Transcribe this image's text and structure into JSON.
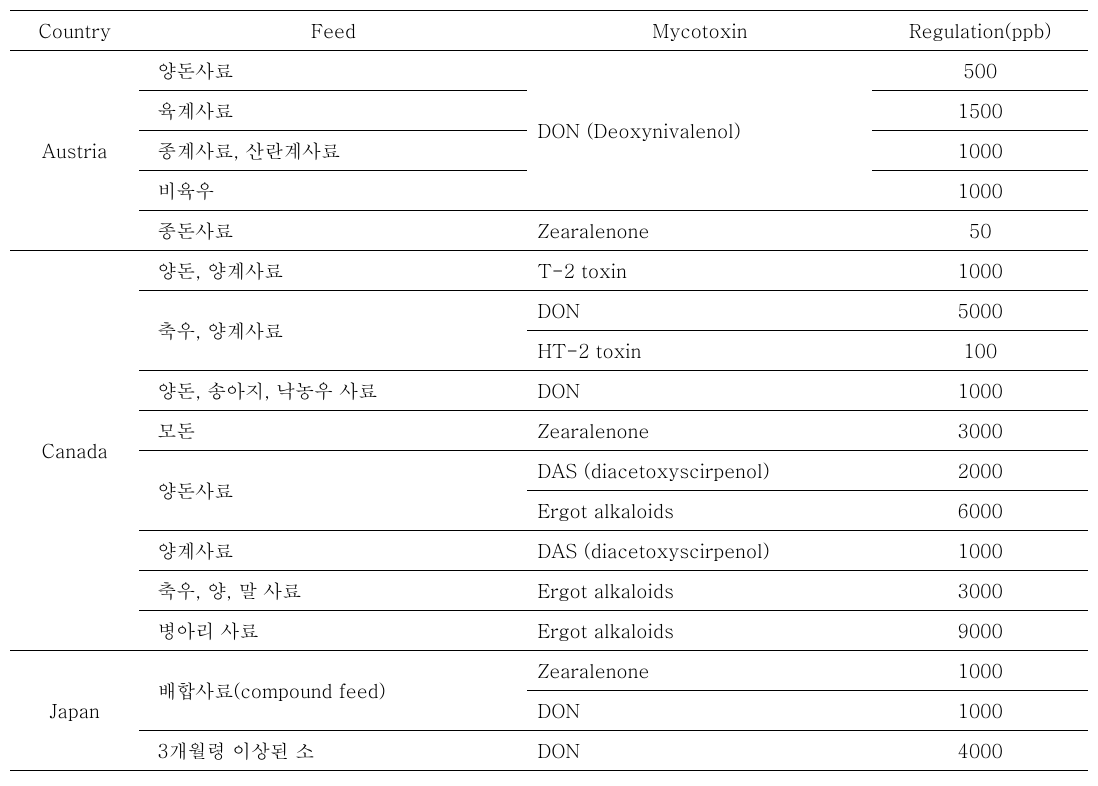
{
  "headers": {
    "country": "Country",
    "feed": "Feed",
    "mycotoxin": "Mycotoxin",
    "regulation": "Regulation(ppb)"
  },
  "rows": [
    {
      "country": "Austria",
      "feed": "양돈사료",
      "mycotoxin": "DON (Deoxynivalenol)",
      "regulation": "500",
      "country_rowspan": 5,
      "mycotoxin_rowspan": 4,
      "feed_border": "inner-bottom",
      "reg_border": "inner-bottom"
    },
    {
      "feed": "육계사료",
      "regulation": "1500",
      "feed_border": "inner-bottom",
      "reg_border": "inner-bottom"
    },
    {
      "feed": "종계사료, 산란계사료",
      "regulation": "1000",
      "feed_border": "inner-bottom",
      "reg_border": "inner-bottom"
    },
    {
      "feed": "비육우",
      "regulation": "1000",
      "feed_border": "inner-bottom",
      "myco_border": "inner-bottom",
      "reg_border": "inner-bottom"
    },
    {
      "feed": "종돈사료",
      "mycotoxin": "Zearalenone",
      "regulation": "50",
      "country_border": "section-bottom",
      "feed_border": "section-bottom",
      "myco_border": "section-bottom",
      "reg_border": "section-bottom"
    },
    {
      "country": "Canada",
      "feed": "양돈, 양계사료",
      "mycotoxin": "T-2 toxin",
      "regulation": "1000",
      "country_rowspan": 10,
      "feed_border": "inner-bottom",
      "myco_border": "inner-bottom",
      "reg_border": "inner-bottom"
    },
    {
      "feed": "축우, 양계사료",
      "feed_rowspan": 2,
      "mycotoxin": "DON",
      "regulation": "5000",
      "myco_border": "inner-bottom",
      "reg_border": "inner-bottom"
    },
    {
      "mycotoxin": "HT-2 toxin",
      "regulation": "100",
      "feed_border": "inner-bottom",
      "myco_border": "inner-bottom",
      "reg_border": "inner-bottom"
    },
    {
      "feed": "양돈, 송아지, 낙농우 사료",
      "mycotoxin": "DON",
      "regulation": "1000",
      "feed_border": "inner-bottom",
      "myco_border": "inner-bottom",
      "reg_border": "inner-bottom"
    },
    {
      "feed": "모돈",
      "mycotoxin": "Zearalenone",
      "regulation": "3000",
      "feed_border": "inner-bottom",
      "myco_border": "inner-bottom",
      "reg_border": "inner-bottom"
    },
    {
      "feed": "양돈사료",
      "feed_rowspan": 2,
      "mycotoxin": "DAS (diacetoxyscirpenol)",
      "regulation": "2000",
      "myco_border": "inner-bottom",
      "reg_border": "inner-bottom"
    },
    {
      "mycotoxin": "Ergot alkaloids",
      "regulation": "6000",
      "feed_border": "inner-bottom",
      "myco_border": "inner-bottom",
      "reg_border": "inner-bottom"
    },
    {
      "feed": "양계사료",
      "mycotoxin": "DAS (diacetoxyscirpenol)",
      "regulation": "1000",
      "feed_border": "inner-bottom",
      "myco_border": "inner-bottom",
      "reg_border": "inner-bottom"
    },
    {
      "feed": "축우, 양, 말 사료",
      "mycotoxin": "Ergot alkaloids",
      "regulation": "3000",
      "feed_border": "inner-bottom",
      "myco_border": "inner-bottom",
      "reg_border": "inner-bottom"
    },
    {
      "feed": "병아리 사료",
      "mycotoxin": "Ergot alkaloids",
      "regulation": "9000",
      "country_border": "section-bottom",
      "feed_border": "section-bottom",
      "myco_border": "section-bottom",
      "reg_border": "section-bottom"
    },
    {
      "country": "Japan",
      "feed": "배합사료(compound feed)",
      "feed_rowspan": 2,
      "mycotoxin": "Zearalenone",
      "regulation": "1000",
      "country_rowspan": 3,
      "myco_border": "inner-bottom",
      "reg_border": "inner-bottom"
    },
    {
      "mycotoxin": "DON",
      "regulation": "1000",
      "feed_border": "inner-bottom",
      "myco_border": "inner-bottom",
      "reg_border": "inner-bottom"
    },
    {
      "feed": "3개월령 이상된 소",
      "mycotoxin": "DON",
      "regulation": "4000",
      "country_border": "table-bottom",
      "feed_border": "table-bottom",
      "myco_border": "table-bottom",
      "reg_border": "table-bottom"
    }
  ]
}
